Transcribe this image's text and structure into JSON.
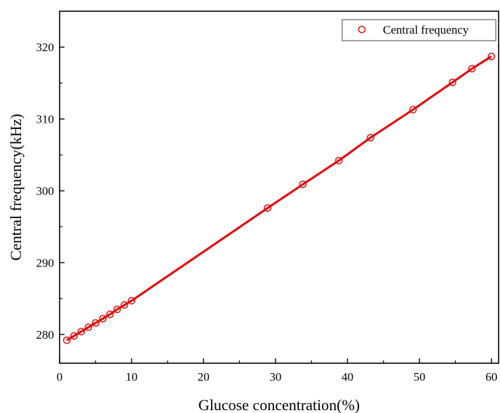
{
  "chart_data": {
    "type": "scatter",
    "title": "",
    "xlabel": "Glucose concentration(%)",
    "ylabel": "Central frequency(kHz)",
    "xlim": [
      0,
      61
    ],
    "ylim": [
      276,
      325
    ],
    "x_ticks": [
      0,
      10,
      20,
      30,
      40,
      50,
      60
    ],
    "y_ticks": [
      280,
      290,
      300,
      310,
      320
    ],
    "grid": false,
    "legend_position": "top-right",
    "colors": {
      "series": "#e01010",
      "axis": "#000000"
    },
    "series": [
      {
        "name": "Central frequency",
        "marker": "open-circle",
        "fit_line": true,
        "points": [
          {
            "x": 1,
            "y": 279.2
          },
          {
            "x": 2,
            "y": 279.8
          },
          {
            "x": 3,
            "y": 280.4
          },
          {
            "x": 4,
            "y": 281.0
          },
          {
            "x": 5,
            "y": 281.6
          },
          {
            "x": 6,
            "y": 282.2
          },
          {
            "x": 7,
            "y": 282.8
          },
          {
            "x": 8,
            "y": 283.5
          },
          {
            "x": 9,
            "y": 284.1
          },
          {
            "x": 10,
            "y": 284.7
          },
          {
            "x": 28.9,
            "y": 297.6
          },
          {
            "x": 33.8,
            "y": 300.9
          },
          {
            "x": 38.8,
            "y": 304.2
          },
          {
            "x": 43.2,
            "y": 307.4
          },
          {
            "x": 49.1,
            "y": 311.3
          },
          {
            "x": 54.6,
            "y": 315.1
          },
          {
            "x": 57.3,
            "y": 317.0
          },
          {
            "x": 60,
            "y": 318.7
          }
        ]
      }
    ]
  }
}
